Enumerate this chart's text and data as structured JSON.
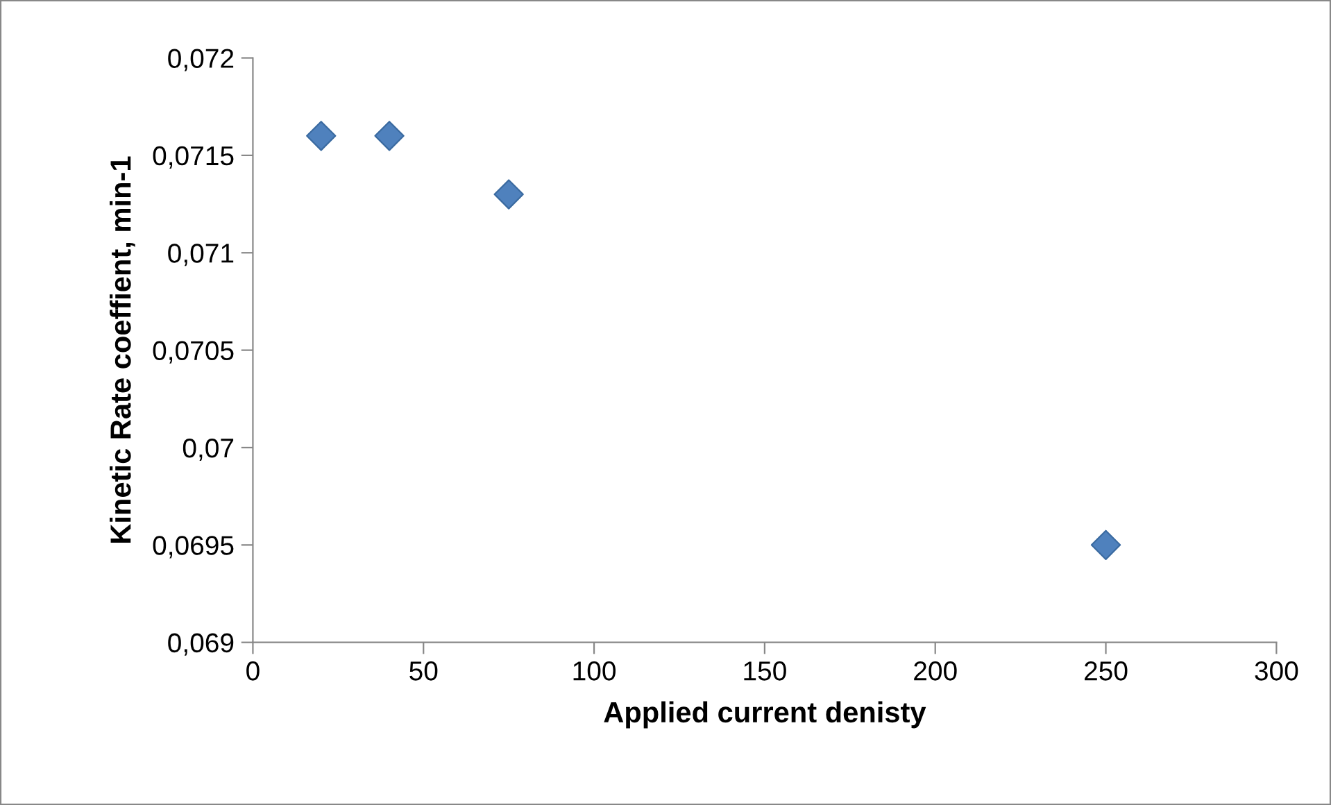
{
  "chart_data": {
    "type": "scatter",
    "xlabel": "Applied current denisty",
    "ylabel": "Kinetic Rate coeffient, min-1",
    "x": [
      20,
      40,
      75,
      250
    ],
    "series": [
      {
        "color": "#4f81bd",
        "values": [
          0.0716,
          0.0716,
          0.0713,
          0.0695
        ]
      }
    ],
    "marker": "diamond",
    "xlim": [
      0,
      300
    ],
    "xticks": [
      0,
      50,
      100,
      150,
      200,
      250,
      300
    ],
    "ylim": [
      0.069,
      0.072
    ],
    "yticks": [
      {
        "value": 0.069,
        "label": "0,069"
      },
      {
        "value": 0.0695,
        "label": "0,0695"
      },
      {
        "value": 0.07,
        "label": "0,07"
      },
      {
        "value": 0.0705,
        "label": "0,0705"
      },
      {
        "value": 0.071,
        "label": "0,071"
      },
      {
        "value": 0.0715,
        "label": "0,0715"
      },
      {
        "value": 0.072,
        "label": "0,072"
      }
    ],
    "grid": false,
    "legend": false
  }
}
